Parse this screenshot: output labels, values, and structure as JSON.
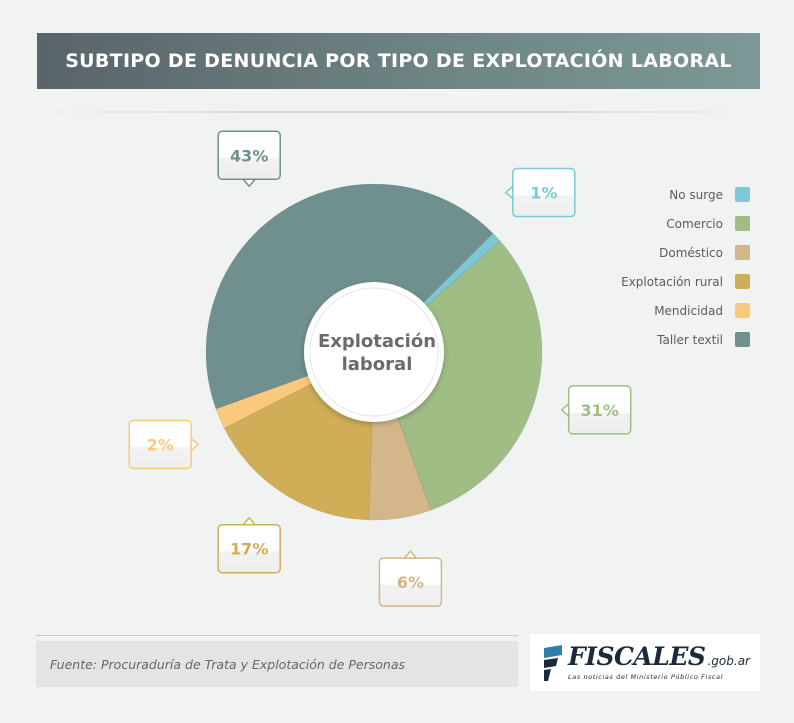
{
  "title": "SUBTIPO DE DENUNCIA POR TIPO DE EXPLOTACIÓN LABORAL",
  "chart_data": {
    "type": "pie",
    "center_label": [
      "Explotación",
      "laboral"
    ],
    "categories": [
      "No surge",
      "Comercio",
      "Doméstico",
      "Explotación rural",
      "Mendicidad",
      "Taller textil"
    ],
    "values": [
      1,
      31,
      6,
      17,
      2,
      43
    ],
    "value_labels": [
      "1%",
      "31%",
      "6%",
      "17%",
      "2%",
      "43%"
    ],
    "colors": [
      "#7cc8d4",
      "#a0bd86",
      "#d3b78b",
      "#d0ae57",
      "#fbc97d",
      "#709090"
    ],
    "legend_position": "right"
  },
  "source": "Fuente: Procuraduría de Trata y Explotación de Personas",
  "logo": {
    "name": "FISCALES",
    "domain": ".gob.ar",
    "tagline": "Las noticias del Ministerio Público Fiscal"
  }
}
